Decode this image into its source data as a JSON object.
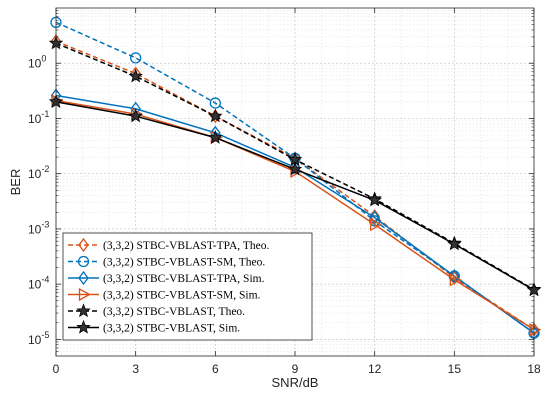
{
  "chart_data": {
    "type": "line",
    "xlabel": "SNR/dB",
    "ylabel": "BER",
    "xlim": [
      0,
      18
    ],
    "ylim": [
      5e-06,
      10
    ],
    "yscale": "log",
    "grid": true,
    "legend_position": "bottom-left",
    "x_ticks": [
      0,
      3,
      6,
      9,
      12,
      15,
      18
    ],
    "x": [
      0,
      3,
      6,
      9,
      12,
      15,
      18
    ],
    "y_ticks": [
      {
        "value": 1e-05,
        "mant": "10",
        "exp": "-5"
      },
      {
        "value": 0.0001,
        "mant": "10",
        "exp": "-4"
      },
      {
        "value": 0.001,
        "mant": "10",
        "exp": "-3"
      },
      {
        "value": 0.01,
        "mant": "10",
        "exp": "-2"
      },
      {
        "value": 0.1,
        "mant": "10",
        "exp": "-1"
      },
      {
        "value": 1,
        "mant": "10",
        "exp": "0"
      }
    ],
    "series": [
      {
        "name": "(3,3,2) STBC-VBLAST-TPA, Theo.",
        "color": "#D95319",
        "dash": "dashed",
        "marker": "diamond",
        "values": [
          2.5,
          0.65,
          0.11,
          0.019,
          0.0017,
          0.00013,
          1.5e-05
        ]
      },
      {
        "name": "(3,3,2) STBC-VBLAST-SM, Theo.",
        "color": "#0072BD",
        "dash": "dashed",
        "marker": "circle",
        "values": [
          5.5,
          1.25,
          0.19,
          0.019,
          0.0014,
          0.00014,
          1.3e-05
        ]
      },
      {
        "name": "(3,3,2) STBC-VBLAST-TPA, Sim.",
        "color": "#0072BD",
        "dash": "solid",
        "marker": "diamond",
        "values": [
          0.26,
          0.15,
          0.055,
          0.013,
          0.0016,
          0.00014,
          1.3e-05
        ]
      },
      {
        "name": "(3,3,2) STBC-VBLAST-SM, Sim.",
        "color": "#D95319",
        "dash": "solid",
        "marker": "triangle-right",
        "values": [
          0.21,
          0.12,
          0.045,
          0.011,
          0.0012,
          0.00012,
          1.5e-05
        ]
      },
      {
        "name": "(3,3,2) STBC-VBLAST, Theo.",
        "color": "#000000",
        "dash": "dashed",
        "marker": "star",
        "values": [
          2.3,
          0.58,
          0.11,
          0.018,
          0.0035,
          0.00055,
          8e-05
        ]
      },
      {
        "name": "(3,3,2) STBC-VBLAST, Sim.",
        "color": "#000000",
        "dash": "solid",
        "marker": "star",
        "values": [
          0.2,
          0.11,
          0.045,
          0.012,
          0.0033,
          0.00053,
          7.8e-05
        ]
      }
    ]
  }
}
